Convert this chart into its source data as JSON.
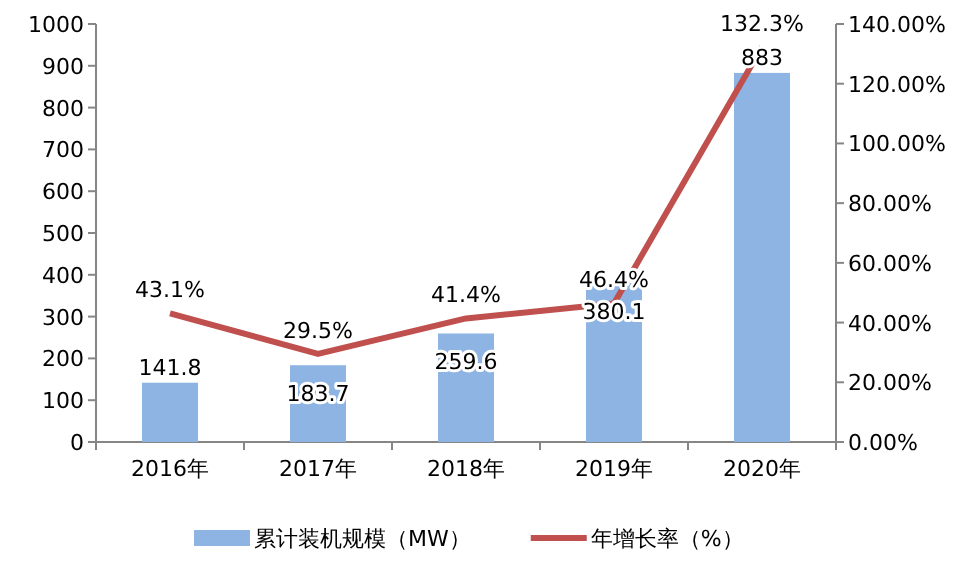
{
  "chart_data": {
    "type": "bar",
    "categories": [
      "2016年",
      "2017年",
      "2018年",
      "2019年",
      "2020年"
    ],
    "series": [
      {
        "name": "累计装机规模（MW）",
        "color": "#8db4e2",
        "values": [
          141.8,
          183.7,
          259.6,
          380.1,
          883
        ],
        "value_labels": [
          "141.8",
          "183.7",
          "259.6",
          "380.1",
          "883"
        ]
      },
      {
        "name": "年增长率（%）",
        "type": "line",
        "axis": "y2",
        "color": "#c0504d",
        "values": [
          43.1,
          29.5,
          41.4,
          46.4,
          132.3
        ],
        "value_labels": [
          "43.1%",
          "29.5%",
          "41.4%",
          "46.4%",
          "132.3%"
        ]
      }
    ],
    "ylim": [
      0,
      1000
    ],
    "yticks": [
      0,
      100,
      200,
      300,
      400,
      500,
      600,
      700,
      800,
      900,
      1000
    ],
    "y2lim": [
      0,
      140
    ],
    "y2ticks": [
      {
        "value": 0,
        "label": "0.00%"
      },
      {
        "value": 20,
        "label": "20.00%"
      },
      {
        "value": 40,
        "label": "40.00%"
      },
      {
        "value": 60,
        "label": "60.00%"
      },
      {
        "value": 80,
        "label": "80.00%"
      },
      {
        "value": 100,
        "label": "100.00%"
      },
      {
        "value": 120,
        "label": "120.00%"
      },
      {
        "value": 140,
        "label": "140.00%"
      }
    ],
    "legend": "bottom",
    "marker": "none",
    "line_style": "solid"
  }
}
